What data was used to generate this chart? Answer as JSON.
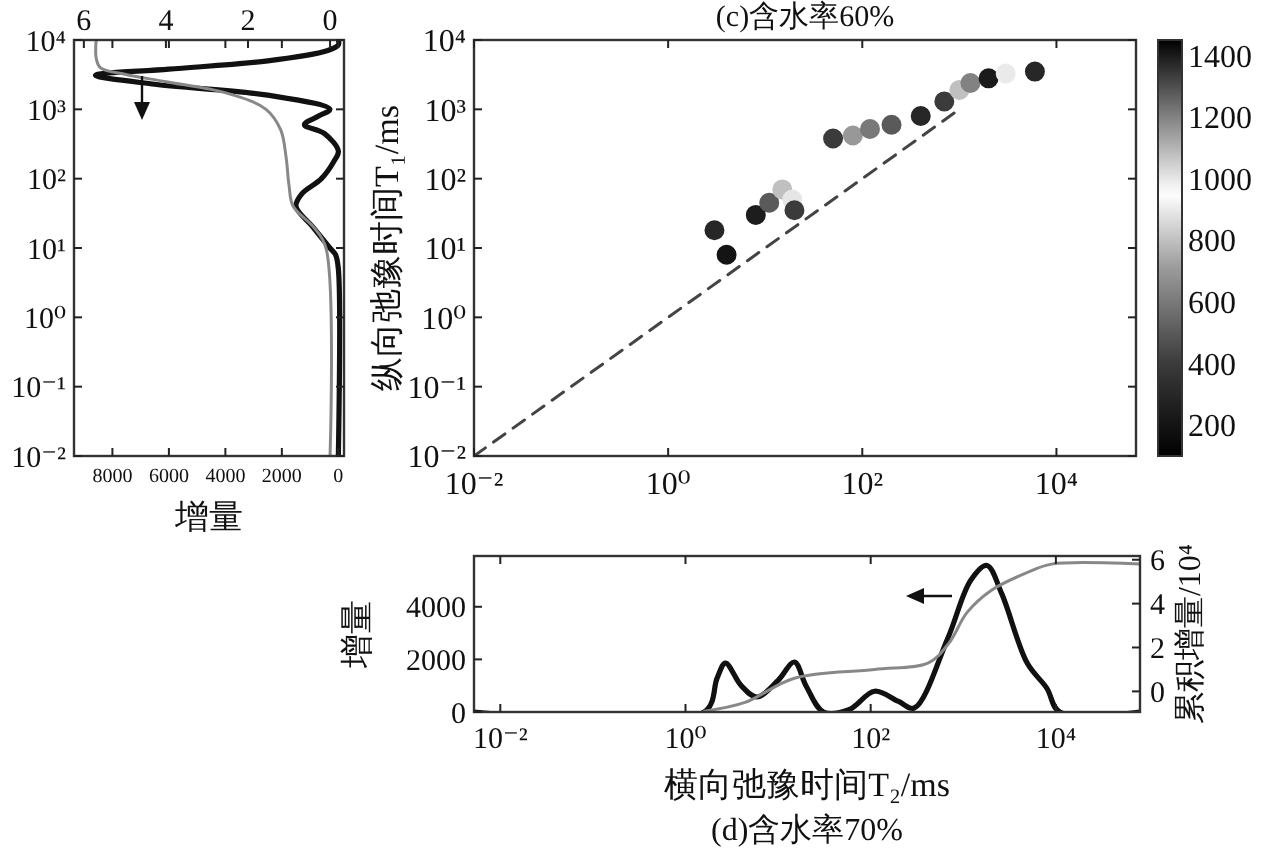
{
  "chart_data": [
    {
      "type": "line",
      "xlabel": "增量",
      "log": "y",
      "xlim": [
        9360,
        -200
      ],
      "xticks": [
        8000,
        6000,
        4000,
        2000,
        0
      ],
      "x2lim": [
        6.24,
        -0.34
      ],
      "x2ticks": [
        6,
        4,
        2,
        0
      ],
      "ylim": [
        0.01,
        10000
      ],
      "yticks": [
        {
          "value": 0.01,
          "label": "10⁻²"
        },
        {
          "value": 0.1,
          "label": "10⁻¹"
        },
        {
          "value": 1,
          "label": "10⁰"
        },
        {
          "value": 10,
          "label": "10¹"
        },
        {
          "value": 100,
          "label": "10²"
        },
        {
          "value": 1000,
          "label": "10³"
        },
        {
          "value": 10000,
          "label": "10⁴"
        }
      ],
      "series": [
        {
          "color": "#111111",
          "x": [
            0,
            0,
            100,
            300,
            900,
            1500,
            1300,
            600,
            150,
            0,
            500,
            1200,
            700,
            300,
            2500,
            6500,
            8600,
            6000,
            2500,
            400,
            0,
            0
          ],
          "values": [
            0.01,
            5,
            8,
            10,
            20,
            40,
            60,
            100,
            180,
            250,
            450,
            600,
            800,
            1000,
            1600,
            2300,
            3100,
            3800,
            5000,
            7000,
            8500,
            10000
          ]
        },
        {
          "color": "#888888",
          "axis": "x2",
          "x": [
            0,
            0.1,
            0.4,
            0.9,
            1.0,
            1.07,
            1.2,
            1.56,
            2.5,
            4.0,
            5.0,
            5.6,
            5.7,
            5.7
          ],
          "values": [
            0.01,
            10,
            20,
            40,
            80,
            200,
            500,
            1000,
            1700,
            2500,
            3200,
            4000,
            5500,
            10000
          ]
        }
      ]
    },
    {
      "type": "scatter",
      "title": "(c)含水率60%",
      "ylabel": "纵向弛豫时间T₁/ms",
      "log": "xy",
      "xlim": [
        0.01,
        66000
      ],
      "xticks": [
        {
          "value": 0.01,
          "label": "10⁻²"
        },
        {
          "value": 1,
          "label": "10⁰"
        },
        {
          "value": 100,
          "label": "10²"
        },
        {
          "value": 10000,
          "label": "10⁴"
        }
      ],
      "ylim": [
        0.01,
        10000
      ],
      "yticks": [
        {
          "value": 0.01,
          "label": "10⁻²"
        },
        {
          "value": 0.1,
          "label": "10⁻¹"
        },
        {
          "value": 1,
          "label": "10⁰"
        },
        {
          "value": 10,
          "label": "10¹"
        },
        {
          "value": 100,
          "label": "10²"
        },
        {
          "value": 1000,
          "label": "10³"
        },
        {
          "value": 10000,
          "label": "10⁴"
        }
      ],
      "clim": [
        100,
        1450
      ],
      "cticks": [
        200,
        400,
        600,
        800,
        1000,
        1200,
        1400
      ],
      "series": [
        {
          "marker": "circle",
          "x": [
            3,
            4,
            8,
            11,
            15,
            19,
            20,
            50,
            80,
            120,
            200,
            400,
            700,
            1000,
            1300,
            2000,
            3000,
            6000
          ],
          "values": [
            18,
            8,
            30,
            45,
            70,
            50,
            35,
            380,
            420,
            520,
            600,
            800,
            1300,
            1900,
            2400,
            2800,
            3300,
            3500
          ],
          "cvalues": [
            300,
            200,
            250,
            500,
            800,
            1000,
            400,
            400,
            700,
            600,
            500,
            300,
            400,
            800,
            1200,
            1400,
            900,
            300
          ],
          "colors": [
            "#272727",
            "#141414",
            "#1d1d1d",
            "#5a5a5a",
            "#c0c0c0",
            "#e6e6e6",
            "#3b3b3b",
            "#3b3b3b",
            "#989898",
            "#797979",
            "#5a5a5a",
            "#272727",
            "#3b3b3b",
            "#c0c0c0",
            "#828282",
            "#1a1a1a",
            "#eaeaea",
            "#272727"
          ]
        },
        {
          "type": "line",
          "color": "#444444",
          "line_style": "dashed",
          "x": [
            0.01,
            1000
          ],
          "values": [
            0.01,
            1000
          ]
        }
      ]
    },
    {
      "type": "line",
      "xlabel": "横向弛豫时间T₂/ms",
      "ylabel": "增量",
      "y2label": "累积增量/10⁴",
      "annotations": [
        "(d)含水率70%"
      ],
      "log": "x",
      "xlim": [
        0.0052,
        81000
      ],
      "xticks": [
        {
          "value": 0.01,
          "label": "10⁻²"
        },
        {
          "value": 1,
          "label": "10⁰"
        },
        {
          "value": 100,
          "label": "10²"
        },
        {
          "value": 10000,
          "label": "10⁴"
        }
      ],
      "ylim": [
        0,
        5930
      ],
      "yticks": [
        0,
        2000,
        4000
      ],
      "y2lim": [
        -0.94,
        6.17
      ],
      "y2ticks": [
        0,
        2,
        4,
        6
      ],
      "series": [
        {
          "color": "#111111",
          "x": [
            0.0052,
            1.6,
            2.2,
            2.7,
            4,
            5.9,
            10,
            15,
            20,
            31,
            59,
            110,
            200,
            295,
            680,
            1200,
            1800,
            2600,
            4900,
            8000,
            11000,
            81000
          ],
          "values": [
            0,
            0,
            1300,
            1860,
            1000,
            570,
            1200,
            1900,
            1000,
            0,
            100,
            790,
            400,
            150,
            2800,
            5000,
            5570,
            4500,
            1860,
            900,
            0,
            0
          ]
        },
        {
          "color": "#888888",
          "axis": "y2",
          "x": [
            1.6,
            4.4,
            15,
            110,
            420,
            700,
            1100,
            2000,
            4800,
            9000,
            81000
          ],
          "values": [
            -0.9,
            -0.5,
            0.6,
            1.0,
            1.3,
            2.2,
            3.6,
            4.6,
            5.4,
            5.8,
            5.8
          ]
        }
      ]
    }
  ]
}
